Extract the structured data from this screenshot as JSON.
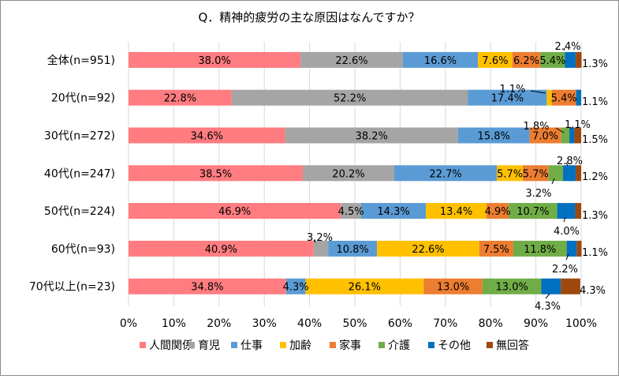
{
  "chart_data": {
    "type": "bar",
    "orientation": "horizontal",
    "stacked": "percent",
    "title": "Q．精神的疲労の主な原因はなんですか？",
    "categories": [
      "全体(n=951)",
      "20代(n=92)",
      "30代(n=272)",
      "40代(n=247)",
      "50代(n=224)",
      "60代(n=93)",
      "70代以上(n=23)"
    ],
    "xlim": [
      0,
      100
    ],
    "x_ticks": [
      "0%",
      "10%",
      "20%",
      "30%",
      "40%",
      "50%",
      "60%",
      "70%",
      "80%",
      "90%",
      "100%"
    ],
    "grid": true,
    "legend_position": "bottom",
    "series": [
      {
        "name": "人間関係",
        "color": "#ff7c80",
        "values": [
          38.0,
          22.8,
          34.6,
          38.5,
          46.9,
          40.9,
          34.8
        ],
        "labels": [
          "38.0%",
          "22.8%",
          "34.6%",
          "38.5%",
          "46.9%",
          "40.9%",
          "34.8%"
        ]
      },
      {
        "name": "育児",
        "color": "#a5a5a5",
        "values": [
          22.6,
          52.2,
          38.2,
          20.2,
          4.5,
          3.2,
          0
        ],
        "labels": [
          "22.6%",
          "52.2%",
          "38.2%",
          "20.2%",
          "4.5%",
          "3.2%",
          ""
        ]
      },
      {
        "name": "仕事",
        "color": "#5b9bd5",
        "values": [
          16.6,
          17.4,
          15.8,
          22.7,
          14.3,
          10.8,
          4.3
        ],
        "labels": [
          "16.6%",
          "17.4%",
          "15.8%",
          "22.7%",
          "14.3%",
          "10.8%",
          "4.3%"
        ]
      },
      {
        "name": "加齢",
        "color": "#ffc000",
        "values": [
          7.6,
          1.1,
          0,
          5.7,
          13.4,
          22.6,
          26.1
        ],
        "labels": [
          "7.6%",
          "1.1%",
          "",
          "5.7%",
          "13.4%",
          "22.6%",
          "26.1%"
        ]
      },
      {
        "name": "家事",
        "color": "#ed7d31",
        "values": [
          6.2,
          5.4,
          7.0,
          5.7,
          4.9,
          7.5,
          13.0
        ],
        "labels": [
          "6.2%",
          "5.4%",
          "7.0%",
          "5.7%",
          "4.9%",
          "7.5%",
          "13.0%"
        ]
      },
      {
        "name": "介護",
        "color": "#70ad47",
        "values": [
          5.4,
          0,
          1.8,
          3.2,
          10.7,
          11.8,
          13.0
        ],
        "labels": [
          "5.4%",
          "",
          "1.8%",
          "3.2%",
          "10.7%",
          "11.8%",
          "13.0%"
        ]
      },
      {
        "name": "その他",
        "color": "#0070c0",
        "values": [
          2.4,
          1.1,
          1.1,
          2.8,
          4.0,
          2.2,
          4.3
        ],
        "labels": [
          "2.4%",
          "1.1%",
          "1.1%",
          "2.8%",
          "4.0%",
          "2.2%",
          "4.3%"
        ]
      },
      {
        "name": "無回答",
        "color": "#9e480e",
        "values": [
          1.3,
          0,
          1.5,
          1.2,
          1.3,
          1.1,
          4.3
        ],
        "labels": [
          "1.3%",
          "",
          "1.5%",
          "1.2%",
          "1.3%",
          "1.1%",
          "4.3%"
        ]
      }
    ]
  }
}
